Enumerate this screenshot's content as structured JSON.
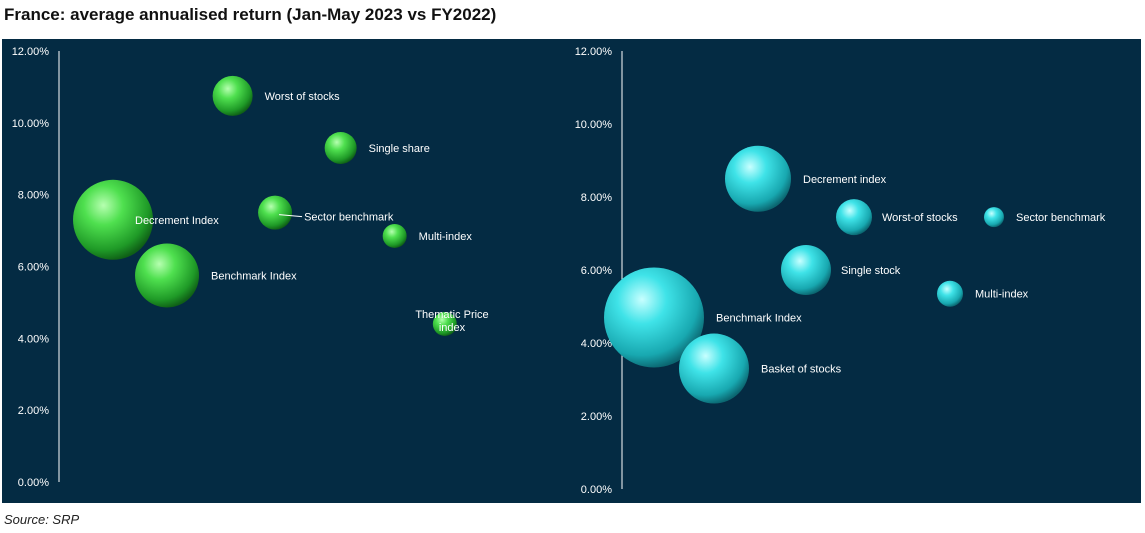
{
  "title": "France: average annualised return (Jan-May 2023 vs FY2022)",
  "source": "Source: SRP",
  "colors": {
    "background": "#042b43",
    "green_bubble": "#3fd24a",
    "cyan_bubble": "#2ed6db",
    "text": "#ffffff"
  },
  "chart_data": [
    {
      "type": "scatter",
      "variant": "bubble",
      "title": "",
      "ylabel": "",
      "ylim": [
        0,
        12
      ],
      "yticks": [
        "0.00%",
        "2.00%",
        "4.00%",
        "6.00%",
        "8.00%",
        "10.00%",
        "12.00%"
      ],
      "color": "#3fd24a",
      "grid": false,
      "points": [
        {
          "label": "Worst of stocks",
          "x": 4.5,
          "y": 10.75,
          "size": 20
        },
        {
          "label": "Single share",
          "x": 7.3,
          "y": 9.3,
          "size": 16
        },
        {
          "label": "Decrement Index",
          "x": 1.4,
          "y": 7.3,
          "size": 40
        },
        {
          "label": "Sector benchmark",
          "x": 5.6,
          "y": 7.5,
          "size": 17
        },
        {
          "label": "Multi-index",
          "x": 8.7,
          "y": 6.85,
          "size": 12
        },
        {
          "label": "Benchmark Index",
          "x": 2.8,
          "y": 5.75,
          "size": 32
        },
        {
          "label": "Thematic Price index",
          "x": 10.0,
          "y": 4.4,
          "size": 12
        }
      ]
    },
    {
      "type": "scatter",
      "variant": "bubble",
      "title": "",
      "ylabel": "",
      "ylim": [
        0,
        12
      ],
      "yticks": [
        "0.00%",
        "2.00%",
        "4.00%",
        "6.00%",
        "8.00%",
        "10.00%",
        "12.00%"
      ],
      "color": "#2ed6db",
      "grid": false,
      "points": [
        {
          "label": "Decrement index",
          "x": 3.4,
          "y": 8.5,
          "size": 33
        },
        {
          "label": "Worst-of stocks",
          "x": 5.8,
          "y": 7.45,
          "size": 18
        },
        {
          "label": "Sector benchmark",
          "x": 9.3,
          "y": 7.45,
          "size": 10
        },
        {
          "label": "Single stock",
          "x": 4.6,
          "y": 6.0,
          "size": 25
        },
        {
          "label": "Multi-index",
          "x": 8.2,
          "y": 5.35,
          "size": 13
        },
        {
          "label": "Benchmark Index",
          "x": 0.8,
          "y": 4.7,
          "size": 50
        },
        {
          "label": "Basket of stocks",
          "x": 2.3,
          "y": 3.3,
          "size": 35
        }
      ]
    }
  ]
}
